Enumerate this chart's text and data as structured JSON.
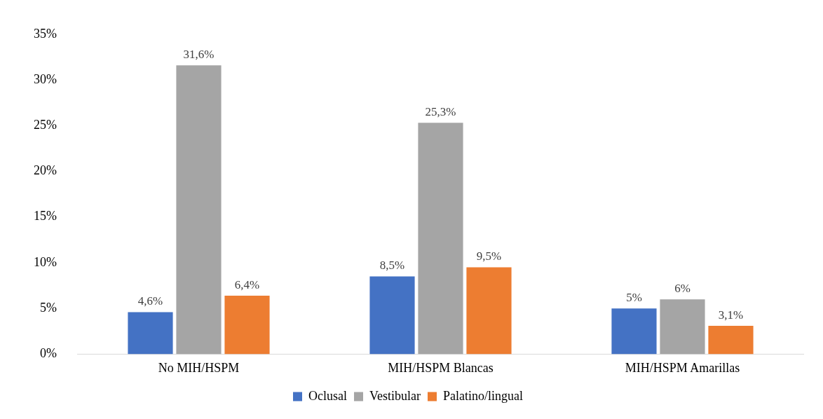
{
  "chart_data": {
    "type": "bar",
    "categories": [
      "No MIH/HSPM",
      "MIH/HSPM Blancas",
      "MIH/HSPM Amarillas"
    ],
    "series": [
      {
        "name": "Oclusal",
        "color": "#4472c4",
        "values": [
          4.6,
          8.5,
          5
        ],
        "value_labels": [
          "4,6%",
          "8,5%",
          "5%"
        ]
      },
      {
        "name": "Vestibular",
        "color": "#a5a5a5",
        "values": [
          31.6,
          25.3,
          6
        ],
        "value_labels": [
          "31,6%",
          "25,3%",
          "6%"
        ]
      },
      {
        "name": "Palatino/lingual",
        "color": "#ed7d31",
        "values": [
          6.4,
          9.5,
          3.1
        ],
        "value_labels": [
          "6,4%",
          "9,5%",
          "3,1%"
        ]
      }
    ],
    "ylim": [
      0,
      35
    ],
    "yticks": [
      {
        "value": 0,
        "label": "0%"
      },
      {
        "value": 5,
        "label": "5%"
      },
      {
        "value": 10,
        "label": "10%"
      },
      {
        "value": 15,
        "label": "15%"
      },
      {
        "value": 20,
        "label": "20%"
      },
      {
        "value": 25,
        "label": "25%"
      },
      {
        "value": 30,
        "label": "30%"
      },
      {
        "value": 35,
        "label": "35%"
      }
    ],
    "grid": false,
    "legend": "bottom"
  }
}
